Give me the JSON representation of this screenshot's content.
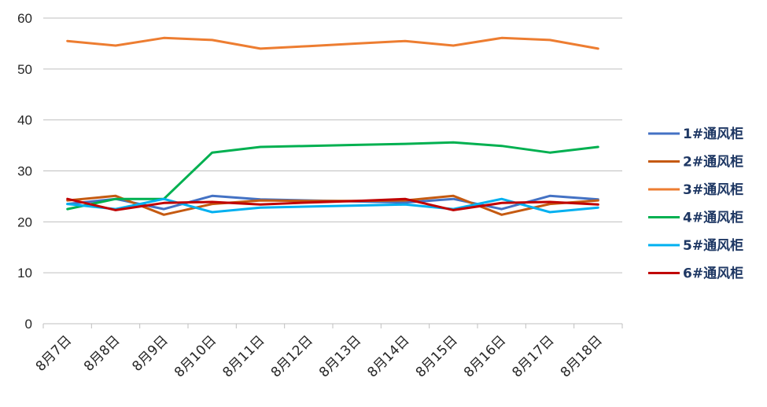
{
  "chart_data": {
    "type": "line",
    "title": "",
    "xlabel": "",
    "ylabel": "",
    "ylim": [
      0,
      60
    ],
    "yticks": [
      0,
      10,
      20,
      30,
      40,
      50,
      60
    ],
    "grid": "horizontal",
    "legend_position": "right",
    "categories": [
      "8月7日",
      "8月8日",
      "8月9日",
      "8月10日",
      "8月11日",
      "8月12日",
      "8月13日",
      "8月14日",
      "8月15日",
      "8月16日",
      "8月17日",
      "8月18日"
    ],
    "series": [
      {
        "name": "1#通风柜",
        "color": "#4472C4",
        "values": [
          23.5,
          24.5,
          22.5,
          25.1,
          24.4,
          24.2,
          24.0,
          23.8,
          24.5,
          22.5,
          25.1,
          24.4
        ]
      },
      {
        "name": "2#通风柜",
        "color": "#C55A11",
        "values": [
          24.2,
          25.1,
          21.4,
          23.5,
          24.2,
          24.1,
          24.1,
          24.2,
          25.1,
          21.4,
          23.5,
          24.2
        ]
      },
      {
        "name": "3#通风柜",
        "color": "#ED7D31",
        "values": [
          55.5,
          54.6,
          56.1,
          55.7,
          54.0,
          54.5,
          55.0,
          55.5,
          54.6,
          56.1,
          55.7,
          54.0
        ]
      },
      {
        "name": "4#通风柜",
        "color": "#00B050",
        "values": [
          22.5,
          24.5,
          24.5,
          33.6,
          34.7,
          34.9,
          35.1,
          35.3,
          35.6,
          34.9,
          33.6,
          34.7
        ]
      },
      {
        "name": "5#通风柜",
        "color": "#00B0F0",
        "values": [
          23.5,
          22.5,
          24.5,
          21.9,
          22.8,
          23.0,
          23.2,
          23.4,
          22.5,
          24.5,
          21.9,
          22.8
        ]
      },
      {
        "name": "6#通风柜",
        "color": "#C00000",
        "values": [
          24.5,
          22.3,
          23.7,
          23.9,
          23.4,
          23.8,
          24.1,
          24.5,
          22.3,
          23.7,
          23.9,
          23.4
        ]
      }
    ]
  }
}
